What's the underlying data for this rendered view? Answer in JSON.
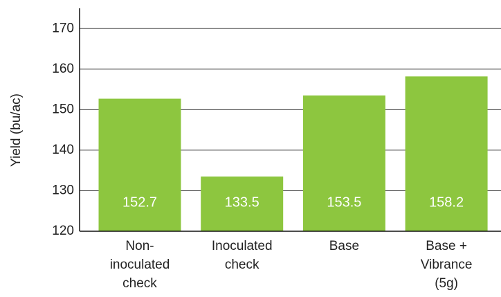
{
  "chart_data": {
    "type": "bar",
    "y_label": "Yield (bu/ac)",
    "categories": [
      "Non-inoculated check",
      "Inoculated check",
      "Base",
      "Base + Vibrance (5g)"
    ],
    "values": [
      152.7,
      133.5,
      153.5,
      158.2
    ],
    "color": "#8dc63f",
    "ylim": [
      120,
      175
    ],
    "yticks": [
      120,
      130,
      140,
      150,
      160,
      170
    ],
    "grid": true
  }
}
